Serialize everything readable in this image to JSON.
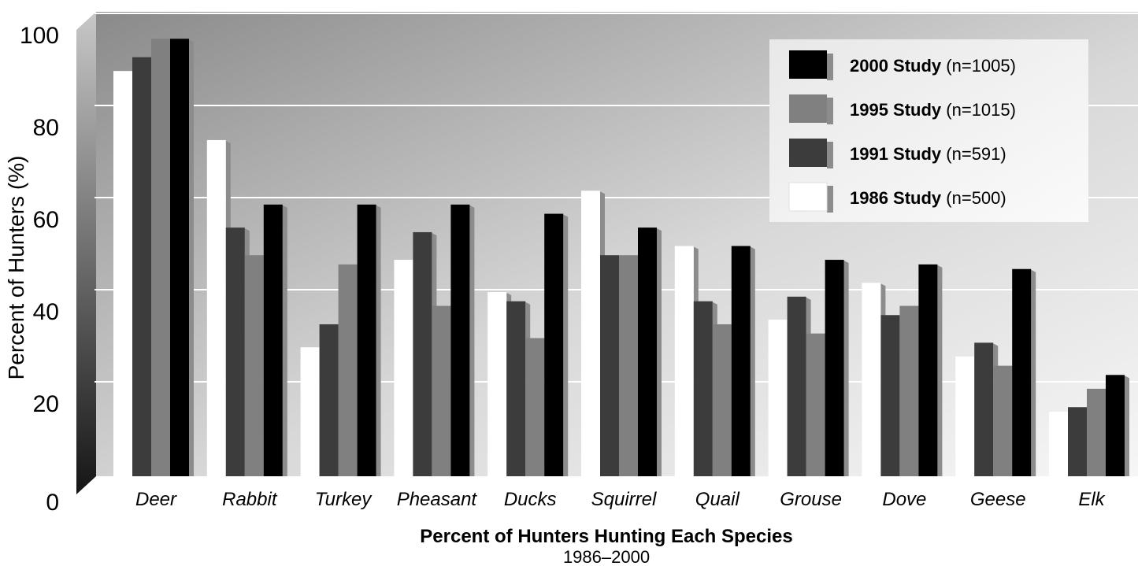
{
  "chart_data": {
    "type": "bar",
    "title": "Percent of Hunters Hunting Each Species",
    "subtitle": "1986–2000",
    "ylabel": "Percent of Hunters (%)",
    "xlabel": "",
    "ylim": [
      0,
      100
    ],
    "yticks": [
      "0",
      "20",
      "40",
      "60",
      "80",
      "100"
    ],
    "grid": true,
    "legend_position": "top-right",
    "categories": [
      "Deer",
      "Rabbit",
      "Turkey",
      "Pheasant",
      "Ducks",
      "Squirrel",
      "Quail",
      "Grouse",
      "Dove",
      "Geese",
      "Elk"
    ],
    "series": [
      {
        "name": "1986 Study",
        "n_label": "(n=500)",
        "color": "#ffffff",
        "values": [
          88,
          73,
          28,
          47,
          40,
          62,
          50,
          34,
          42,
          26,
          14
        ]
      },
      {
        "name": "1991 Study",
        "n_label": "(n=591)",
        "color": "#3c3c3c",
        "values": [
          91,
          54,
          33,
          53,
          38,
          48,
          38,
          39,
          35,
          29,
          15
        ]
      },
      {
        "name": "1995 Study",
        "n_label": "(n=1015)",
        "color": "#808080",
        "values": [
          95,
          48,
          46,
          37,
          30,
          48,
          33,
          31,
          37,
          24,
          19
        ]
      },
      {
        "name": "2000 Study",
        "n_label": "(n=1005)",
        "color": "#000000",
        "values": [
          95,
          59,
          59,
          59,
          57,
          54,
          50,
          47,
          46,
          45,
          22
        ]
      }
    ],
    "legend_order": [
      "2000 Study",
      "1995 Study",
      "1991 Study",
      "1986 Study"
    ]
  }
}
